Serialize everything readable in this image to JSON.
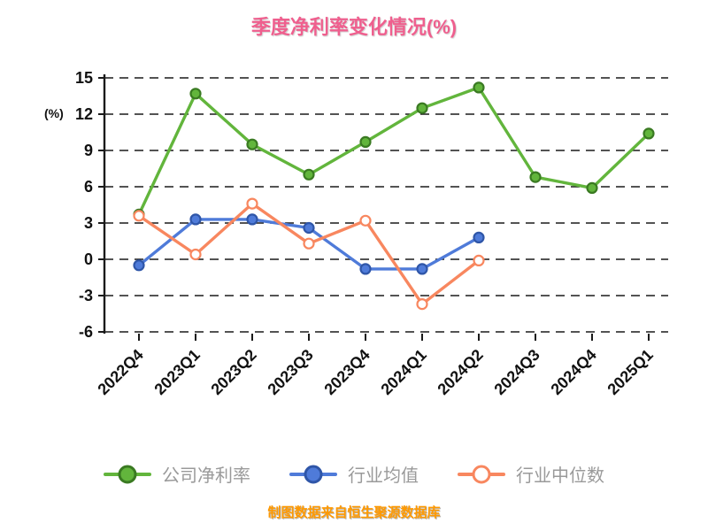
{
  "chart_data": {
    "type": "line",
    "title": "季度净利率变化情况(%)",
    "ylabel": "(%)",
    "categories": [
      "2022Q4",
      "2023Q1",
      "2023Q2",
      "2023Q3",
      "2023Q4",
      "2024Q1",
      "2024Q2",
      "2024Q3",
      "2024Q4",
      "2025Q1"
    ],
    "series": [
      {
        "name": "公司净利率",
        "color": "#62b53c",
        "marker_fill": "#62b53c",
        "marker_edge": "#3a7a22",
        "values": [
          3.7,
          13.7,
          9.5,
          7.0,
          9.7,
          12.5,
          14.2,
          6.8,
          5.9,
          10.4
        ]
      },
      {
        "name": "行业均值",
        "color": "#4f7bd9",
        "marker_fill": "#4f7bd9",
        "marker_edge": "#2f56a8",
        "values": [
          -0.5,
          3.3,
          3.3,
          2.6,
          -0.8,
          -0.8,
          1.8,
          null,
          null,
          null
        ]
      },
      {
        "name": "行业中位数",
        "color": "#f8875f",
        "marker_fill": "#ffffff",
        "marker_edge": "#f8875f",
        "values": [
          3.6,
          0.4,
          4.6,
          1.3,
          3.2,
          -3.7,
          -0.1,
          null,
          null,
          null
        ]
      }
    ],
    "ylim": [
      -6,
      15
    ],
    "yticks": [
      15,
      12,
      9,
      6,
      3,
      0,
      -3,
      -6
    ],
    "grid": "dashed horizontal",
    "legend_position": "bottom"
  },
  "footer": {
    "text": "制图数据来自恒生聚源数据库"
  },
  "colors": {
    "title": "#ef5f8e",
    "ylabel": "#e60000",
    "axis_text": "#111111",
    "gridline": "#1a1a1a",
    "legend_text": "#9a9a9a",
    "footer_text": "#ff9900"
  }
}
